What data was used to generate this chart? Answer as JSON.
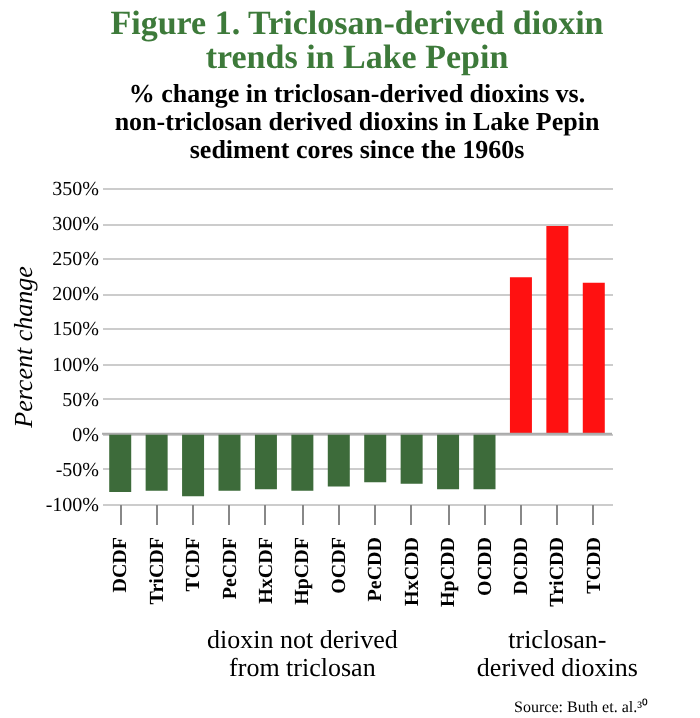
{
  "chart_data": {
    "type": "bar",
    "title": "Figure 1. Triclosan-derived dioxin\ntrends in Lake Pepin",
    "subtitle": "% change in triclosan-derived dioxins vs.\nnon-triclosan derived dioxins in Lake Pepin\nsediment cores since the 1960s",
    "ylabel": "Percent change",
    "categories": [
      "DCDF",
      "TriCDF",
      "TCDF",
      "PeCDF",
      "HxCDF",
      "HpCDF",
      "OCDF",
      "PeCDD",
      "HxCDD",
      "HpCDD",
      "OCDD",
      "DCDD",
      "TriCDD",
      "TCDD"
    ],
    "values": [
      -83,
      -81,
      -89,
      -81,
      -79,
      -81,
      -75,
      -69,
      -71,
      -79,
      -79,
      223,
      296,
      215
    ],
    "colors": [
      "#3d6b3a",
      "#3d6b3a",
      "#3d6b3a",
      "#3d6b3a",
      "#3d6b3a",
      "#3d6b3a",
      "#3d6b3a",
      "#3d6b3a",
      "#3d6b3a",
      "#3d6b3a",
      "#3d6b3a",
      "#ff1111",
      "#ff1111",
      "#ff1111"
    ],
    "ylim": [
      -100,
      350
    ],
    "yticks": [
      {
        "value": -100,
        "label": "-100%"
      },
      {
        "value": -50,
        "label": "-50%"
      },
      {
        "value": 0,
        "label": "0%"
      },
      {
        "value": 50,
        "label": "50%"
      },
      {
        "value": 100,
        "label": "100%"
      },
      {
        "value": 150,
        "label": "150%"
      },
      {
        "value": 200,
        "label": "200%"
      },
      {
        "value": 250,
        "label": "250%"
      },
      {
        "value": 300,
        "label": "300%"
      },
      {
        "value": 350,
        "label": "350%"
      }
    ],
    "grid": "y",
    "annotations": [
      "dioxin not derived\nfrom triclosan",
      "triclosan-\nderived dioxins",
      "Source: Buth et. al.³⁰"
    ]
  }
}
